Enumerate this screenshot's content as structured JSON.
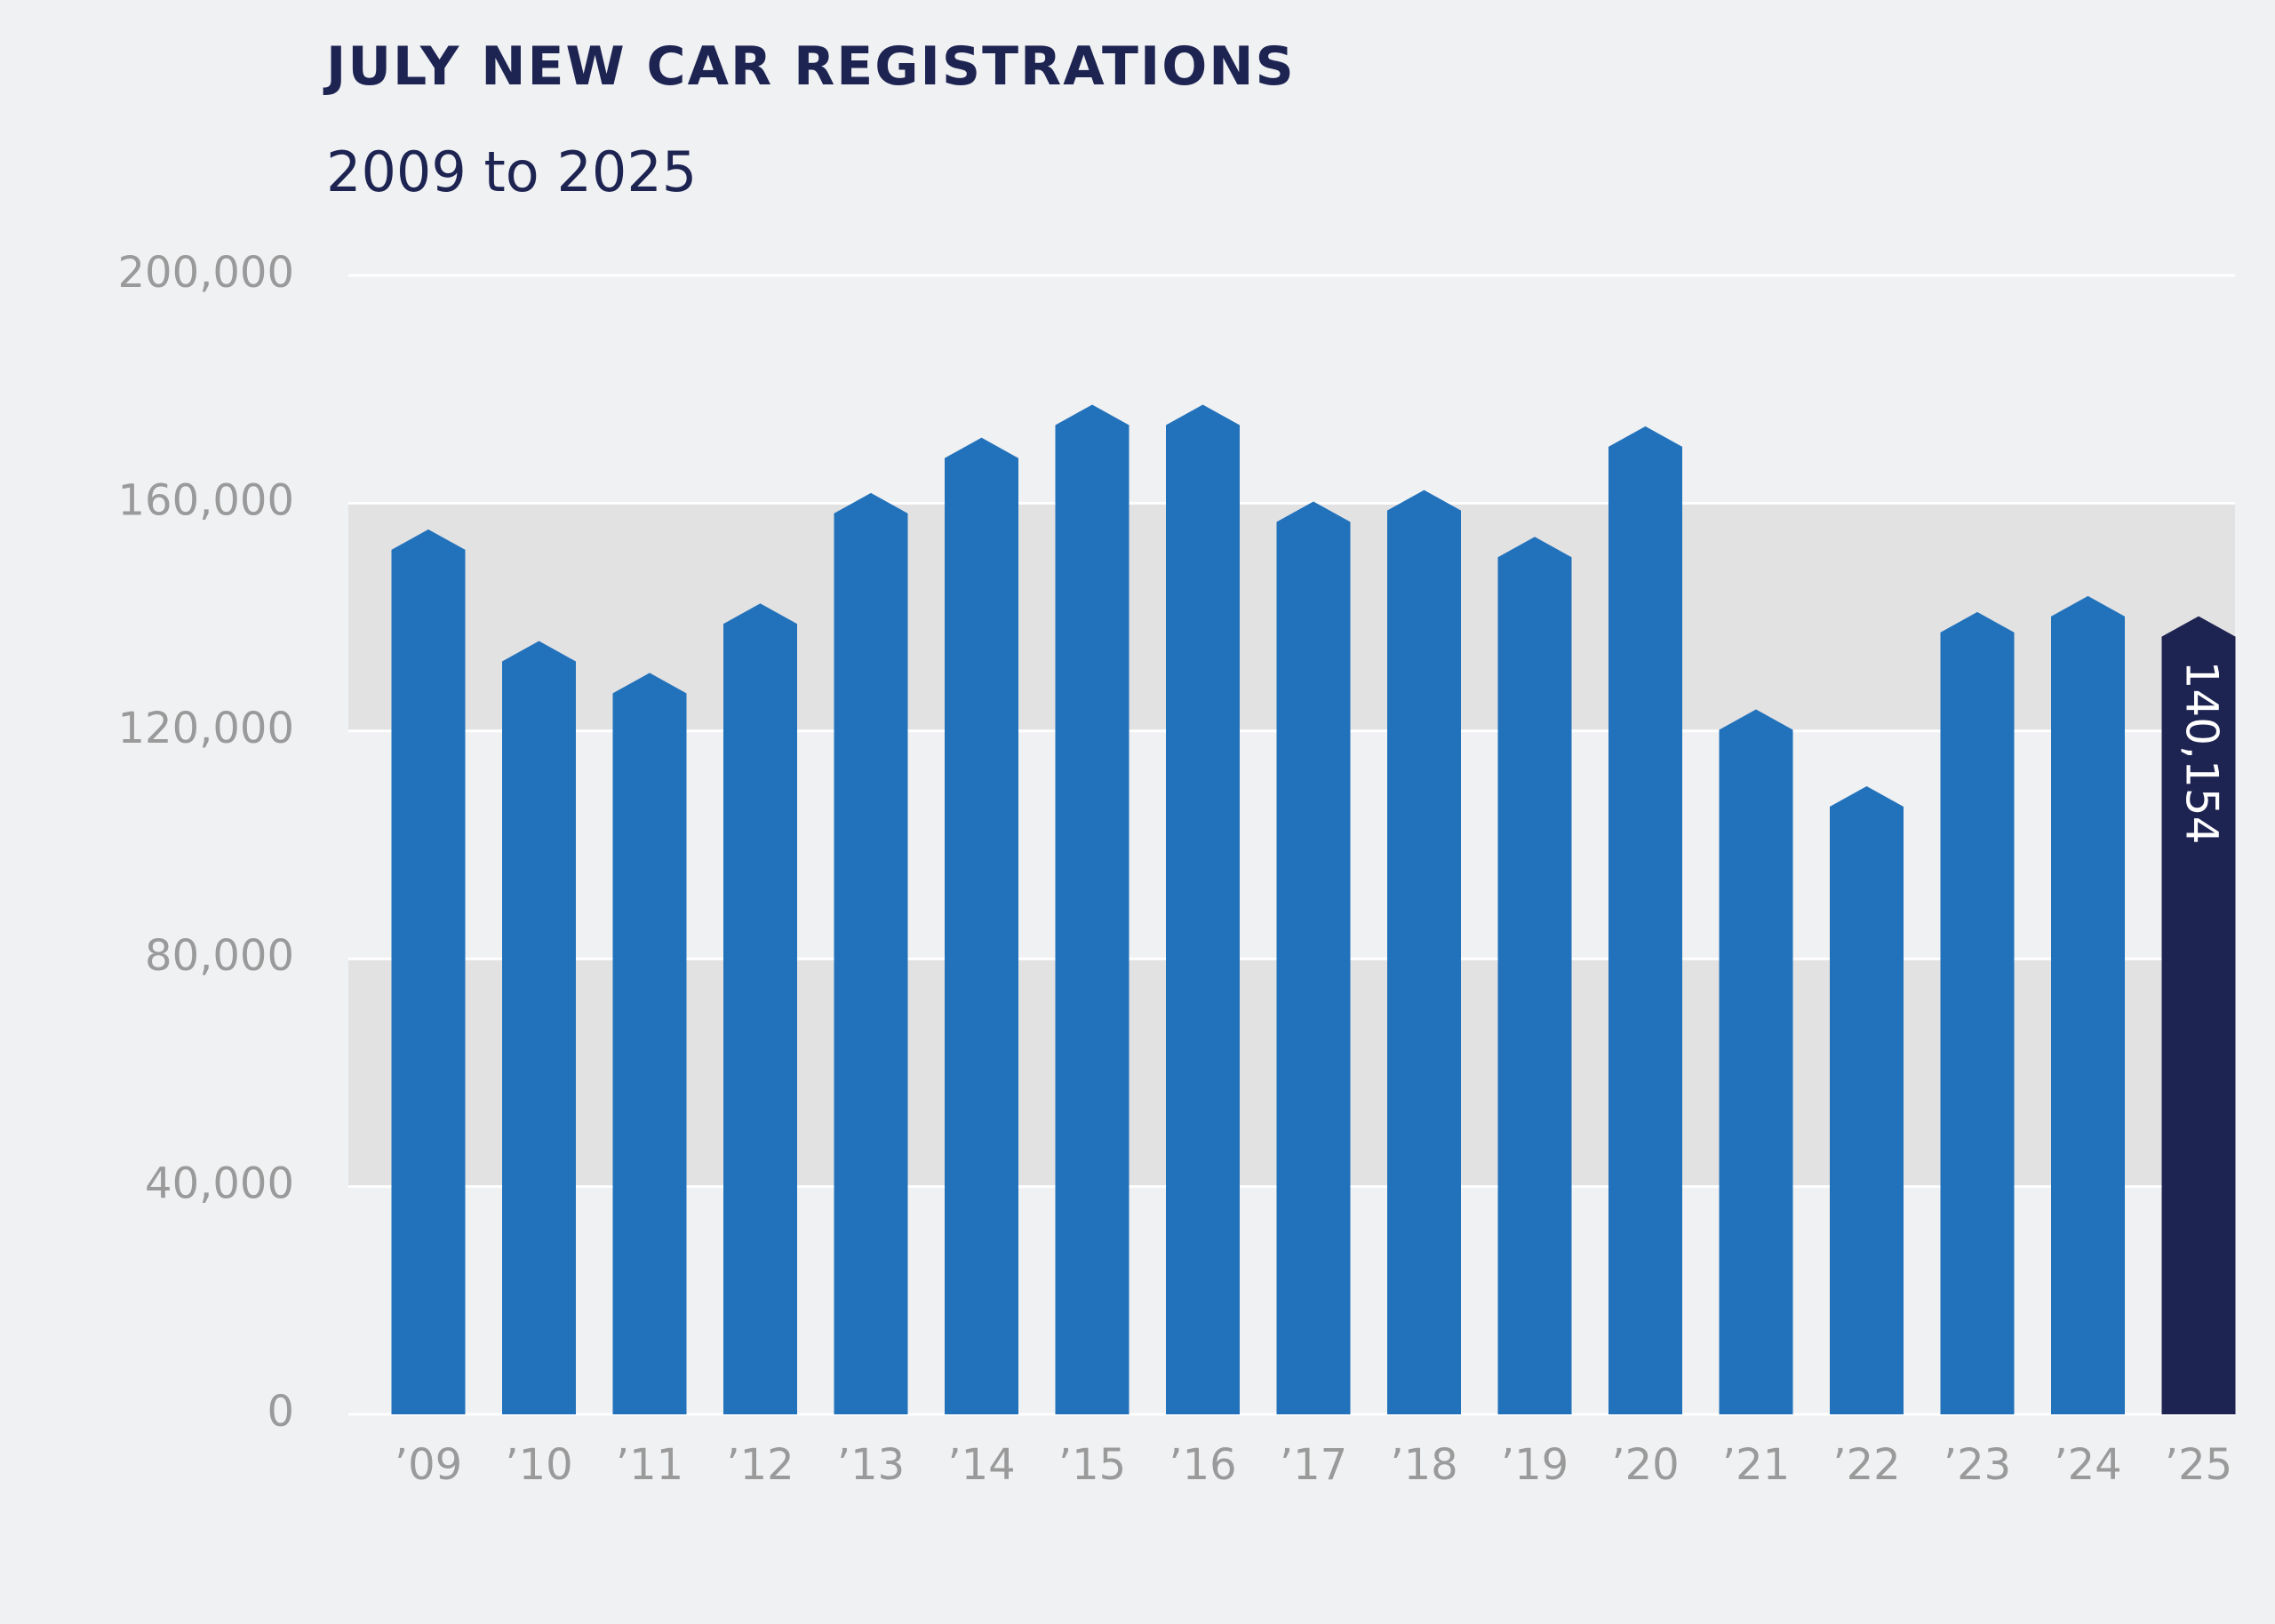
{
  "chart_data": {
    "type": "bar",
    "title": "JULY NEW CAR REGISTRATIONS",
    "subtitle": "2009 to 2025",
    "categories": [
      "’09",
      "’10",
      "’11",
      "’12",
      "’13",
      "’14",
      "’15",
      "’16",
      "’17",
      "’18",
      "’19",
      "’20",
      "’21",
      "’22",
      "’23",
      "’24",
      "’25"
    ],
    "values": [
      155400,
      135800,
      130200,
      142400,
      161800,
      171500,
      177300,
      177300,
      160300,
      162300,
      154100,
      173500,
      123800,
      110300,
      140900,
      143700,
      140154
    ],
    "value_labels": [
      null,
      null,
      null,
      null,
      null,
      null,
      null,
      null,
      null,
      null,
      null,
      null,
      null,
      null,
      null,
      null,
      "140,154"
    ],
    "colors": [
      "#2272bb",
      "#2272bb",
      "#2272bb",
      "#2272bb",
      "#2272bb",
      "#2272bb",
      "#2272bb",
      "#2272bb",
      "#2272bb",
      "#2272bb",
      "#2272bb",
      "#2272bb",
      "#2272bb",
      "#2272bb",
      "#2272bb",
      "#2272bb",
      "#1e2452"
    ],
    "ylim": [
      0,
      200000
    ],
    "yticks": [
      {
        "value": 0,
        "label": "0"
      },
      {
        "value": 40000,
        "label": "40,000"
      },
      {
        "value": 80000,
        "label": "80,000"
      },
      {
        "value": 120000,
        "label": "120,000"
      },
      {
        "value": 160000,
        "label": "160,000"
      },
      {
        "value": 200000,
        "label": "200,000"
      }
    ],
    "grid": true
  }
}
